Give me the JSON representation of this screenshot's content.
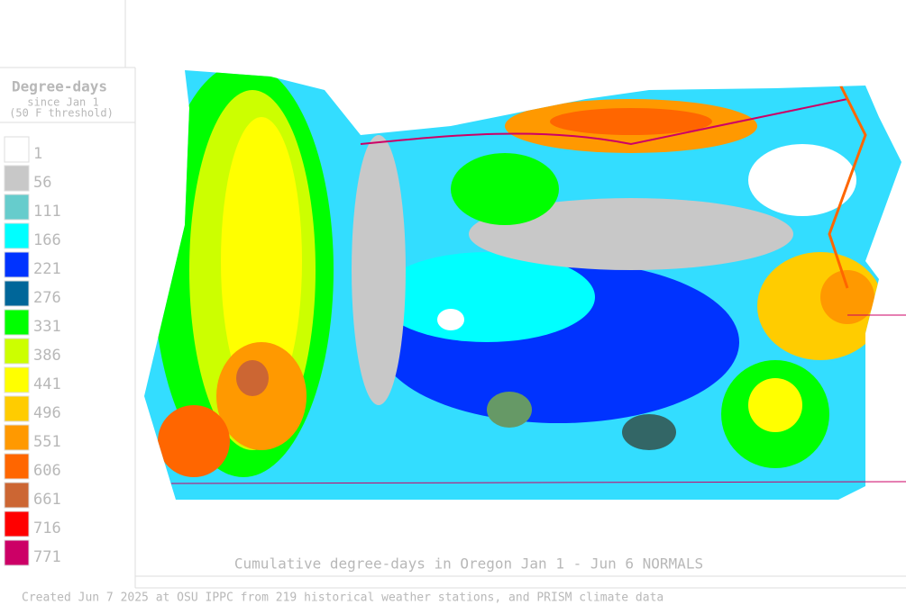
{
  "legend": {
    "title": "Degree-days",
    "subtitle": [
      "since Jan 1",
      "(50 F threshold)"
    ],
    "items": [
      {
        "label": "1",
        "color": "#ffffff"
      },
      {
        "label": "56",
        "color": "#c8c8c8"
      },
      {
        "label": "111",
        "color": "#66cccc"
      },
      {
        "label": "166",
        "color": "#00ffff"
      },
      {
        "label": "221",
        "color": "#0033ff"
      },
      {
        "label": "276",
        "color": "#006699"
      },
      {
        "label": "331",
        "color": "#00ff00"
      },
      {
        "label": "386",
        "color": "#ccff00"
      },
      {
        "label": "441",
        "color": "#ffff00"
      },
      {
        "label": "496",
        "color": "#ffcc00"
      },
      {
        "label": "551",
        "color": "#ff9900"
      },
      {
        "label": "606",
        "color": "#ff6600"
      },
      {
        "label": "661",
        "color": "#cc6633"
      },
      {
        "label": "716",
        "color": "#ff0000"
      },
      {
        "label": "771",
        "color": "#cc0066"
      }
    ]
  },
  "map": {
    "caption": "Cumulative degree-days in Oregon  Jan 1 - Jun 6 NORMALS"
  },
  "footer": "Created Jun 7 2025 at OSU IPPC from 219 historical weather stations, and PRISM climate data"
}
